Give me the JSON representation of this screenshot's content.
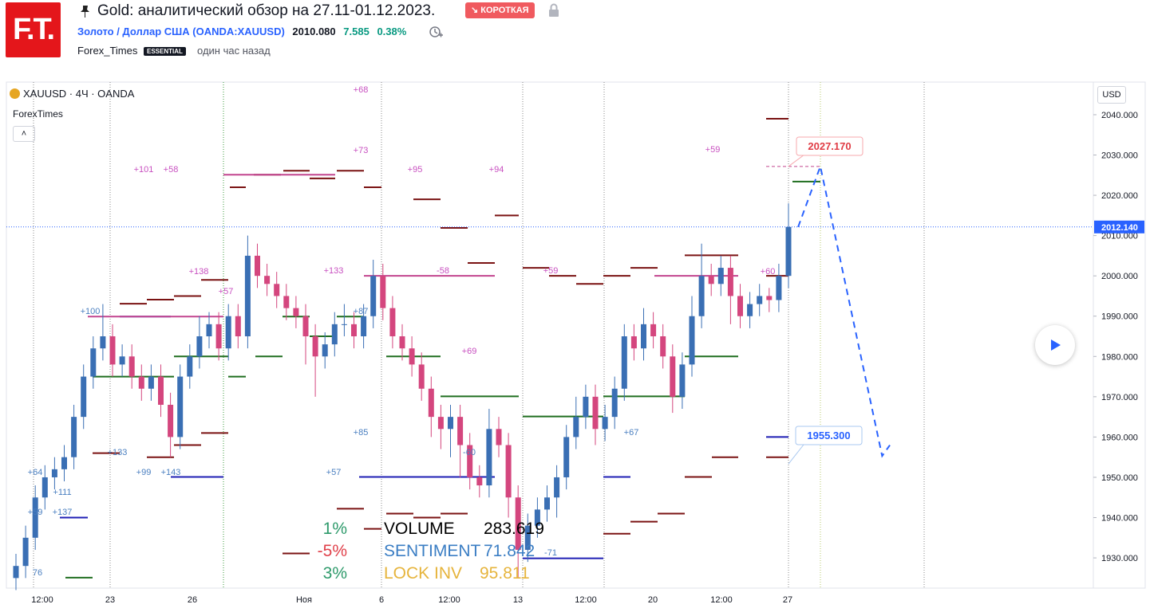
{
  "header": {
    "logo": "F.T.",
    "title": "Gold: аналитический обзор на 27.11-01.12.2023.",
    "badge": "↘ КОРОТКАЯ",
    "symbol_name": "Золото / Доллар США",
    "symbol_code": "(OANDA:XAUUSD)",
    "price": "2010.080",
    "change": "7.585",
    "change_pct": "0.38%",
    "author": "Forex_Times",
    "author_badge": "ESSENTIAL",
    "time": "один час назад"
  },
  "chart_data": {
    "type": "candlestick",
    "legend": "XAUUSD · 4Ч · OANDA",
    "source": "ForexTimes",
    "currency": "USD",
    "up_color": "#3a6fb4",
    "down_color": "#d4467e",
    "ylim": [
      1922.5,
      2048.1
    ],
    "yticks": [
      {
        "value": 1930,
        "label": "1930.000"
      },
      {
        "value": 1940,
        "label": "1940.000"
      },
      {
        "value": 1950,
        "label": "1950.000"
      },
      {
        "value": 1960,
        "label": "1960.000"
      },
      {
        "value": 1970,
        "label": "1970.000"
      },
      {
        "value": 1980,
        "label": "1980.000"
      },
      {
        "value": 1990,
        "label": "1990.000"
      },
      {
        "value": 2000,
        "label": "2000.000"
      },
      {
        "value": 2010,
        "label": "2010.000"
      },
      {
        "value": 2020,
        "label": "2020.000"
      },
      {
        "value": 2030,
        "label": "2030.000"
      },
      {
        "value": 2040,
        "label": "2040.000"
      }
    ],
    "x_labels": [
      "12:00",
      "23",
      "26",
      "Ноя",
      "6",
      "12:00",
      "13",
      "12:00",
      "20",
      "12:00",
      "27"
    ],
    "last_price": {
      "value": 2012.14,
      "label": "2012.140"
    },
    "targets": [
      {
        "value": 2027.17,
        "label": "2027.170"
      },
      {
        "value": 1955.3,
        "label": "1955.300"
      }
    ],
    "forecast": {
      "x": [
        81,
        83.3,
        89.7,
        90.5
      ],
      "y": [
        2012.14,
        2027.17,
        1955.3,
        1958
      ]
    },
    "candles": [
      [
        1925,
        1931,
        1922,
        1928
      ],
      [
        1928,
        1938,
        1925,
        1935
      ],
      [
        1935,
        1948,
        1932,
        1945
      ],
      [
        1945,
        1953,
        1942,
        1950
      ],
      [
        1950,
        1955,
        1947,
        1952
      ],
      [
        1952,
        1958,
        1949,
        1955
      ],
      [
        1955,
        1968,
        1952,
        1965
      ],
      [
        1965,
        1978,
        1962,
        1975
      ],
      [
        1975,
        1985,
        1972,
        1982
      ],
      [
        1982,
        1993,
        1979,
        1985
      ],
      [
        1985,
        1988,
        1975,
        1978
      ],
      [
        1978,
        1983,
        1975,
        1980
      ],
      [
        1980,
        1983,
        1972,
        1975
      ],
      [
        1975,
        1978,
        1969,
        1972
      ],
      [
        1972,
        1978,
        1969,
        1975
      ],
      [
        1975,
        1978,
        1965,
        1968
      ],
      [
        1968,
        1971,
        1955,
        1960
      ],
      [
        1960,
        1978,
        1957,
        1975
      ],
      [
        1975,
        1983,
        1972,
        1980
      ],
      [
        1980,
        1990,
        1977,
        1985
      ],
      [
        1985,
        1991,
        1982,
        1988
      ],
      [
        1988,
        1991,
        1979,
        1982
      ],
      [
        1982,
        1993,
        1979,
        1990
      ],
      [
        1990,
        1993,
        1982,
        1985
      ],
      [
        1985,
        2010,
        1982,
        2005
      ],
      [
        2005,
        2008,
        1997,
        2000
      ],
      [
        2000,
        2003,
        1995,
        1998
      ],
      [
        1998,
        2001,
        1992,
        1995
      ],
      [
        1995,
        1998,
        1989,
        1992
      ],
      [
        1992,
        1995,
        1987,
        1990
      ],
      [
        1990,
        1993,
        1978,
        1985
      ],
      [
        1985,
        1988,
        1970,
        1980
      ],
      [
        1980,
        1986,
        1977,
        1983
      ],
      [
        1983,
        1991,
        1980,
        1988
      ],
      [
        1988,
        1993,
        1985,
        1988
      ],
      [
        1988,
        1991,
        1982,
        1985
      ],
      [
        1985,
        1993,
        1982,
        1990
      ],
      [
        1990,
        2004,
        1987,
        2000
      ],
      [
        2000,
        2003,
        1989,
        1992
      ],
      [
        1992,
        1995,
        1982,
        1985
      ],
      [
        1985,
        1988,
        1979,
        1982
      ],
      [
        1982,
        1985,
        1975,
        1978
      ],
      [
        1978,
        1981,
        1969,
        1972
      ],
      [
        1972,
        1975,
        1960,
        1965
      ],
      [
        1965,
        1968,
        1957,
        1962
      ],
      [
        1962,
        1968,
        1955,
        1965
      ],
      [
        1965,
        1968,
        1950,
        1958
      ],
      [
        1958,
        1961,
        1947,
        1950
      ],
      [
        1950,
        1953,
        1945,
        1948
      ],
      [
        1948,
        1967,
        1945,
        1962
      ],
      [
        1962,
        1965,
        1955,
        1958
      ],
      [
        1958,
        1961,
        1940,
        1945
      ],
      [
        1945,
        1948,
        1925,
        1932
      ],
      [
        1932,
        1941,
        1929,
        1938
      ],
      [
        1938,
        1945,
        1935,
        1942
      ],
      [
        1942,
        1948,
        1939,
        1945
      ],
      [
        1945,
        1953,
        1940,
        1950
      ],
      [
        1950,
        1963,
        1947,
        1960
      ],
      [
        1960,
        1970,
        1957,
        1965
      ],
      [
        1965,
        1973,
        1962,
        1970
      ],
      [
        1970,
        1973,
        1958,
        1962
      ],
      [
        1962,
        1968,
        1959,
        1965
      ],
      [
        1965,
        1975,
        1962,
        1972
      ],
      [
        1972,
        1988,
        1969,
        1985
      ],
      [
        1985,
        1988,
        1979,
        1982
      ],
      [
        1982,
        1992,
        1979,
        1988
      ],
      [
        1988,
        1991,
        1982,
        1985
      ],
      [
        1985,
        1988,
        1977,
        1980
      ],
      [
        1980,
        1983,
        1966,
        1970
      ],
      [
        1970,
        1981,
        1967,
        1978
      ],
      [
        1978,
        1995,
        1975,
        1990
      ],
      [
        1990,
        2008,
        1987,
        2000
      ],
      [
        2000,
        2003,
        1995,
        1998
      ],
      [
        1998,
        2005,
        1995,
        2002
      ],
      [
        2002,
        2005,
        1988,
        1995
      ],
      [
        1995,
        1998,
        1987,
        1990
      ],
      [
        1990,
        1996,
        1987,
        1993
      ],
      [
        1993,
        1998,
        1990,
        1995
      ],
      [
        1995,
        1997,
        1991,
        1994
      ],
      [
        1994,
        2003,
        1991,
        2000
      ],
      [
        2000,
        2018,
        1997,
        2012.14
      ]
    ],
    "levels": [
      {
        "color": "#7a1212",
        "values": [
          2039,
          2026.1,
          2022,
          2022,
          2025.1,
          2026.1,
          2024.2,
          2019,
          2011.9,
          2015,
          2003.2,
          2002,
          2000,
          1998,
          2000,
          2002,
          2005.1,
          2000,
          1993.1,
          1994.1,
          1995,
          1999,
          1956,
          1955,
          1958,
          1961,
          1955,
          1955,
          1950.1,
          1941,
          1939,
          1936,
          1937.2,
          1942.2,
          1931.1,
          1941,
          1940,
          1941
        ]
      },
      {
        "color": "#1f6e1f",
        "values": [
          1925.1,
          1980,
          1975,
          1975,
          1980,
          1989.9,
          1985,
          1989.9,
          1980,
          1970.1,
          1965.1,
          1970.1,
          1980,
          2023.4
        ]
      },
      {
        "color": "#1f1fb4",
        "values": [
          1940,
          1989.9,
          1950.1,
          1950.1,
          1950.1,
          1929.9,
          1960
        ]
      },
      {
        "color": "#c2458f",
        "values": [
          1989.9,
          2025.1,
          2000,
          2000,
          2027.17
        ]
      }
    ],
    "annotations": [
      "+68",
      "+73",
      "+59",
      "+101",
      "+58",
      "+95",
      "+94",
      "+138",
      "+57",
      "+133",
      "-58",
      "+59",
      "+60",
      "+100",
      "+87",
      "+69",
      "+85",
      "+67",
      "-60",
      "+133",
      "+99",
      "+143",
      "+57",
      "+64",
      "+111",
      "+59",
      "+137",
      "76",
      "-71"
    ],
    "stats": {
      "pcts": [
        "1%",
        "-5%",
        "3%"
      ],
      "rows": [
        [
          "VOLUME",
          "283.619"
        ],
        [
          "SENTIMENT",
          "71.842"
        ],
        [
          "LOCK INV",
          "95.811"
        ]
      ]
    }
  }
}
